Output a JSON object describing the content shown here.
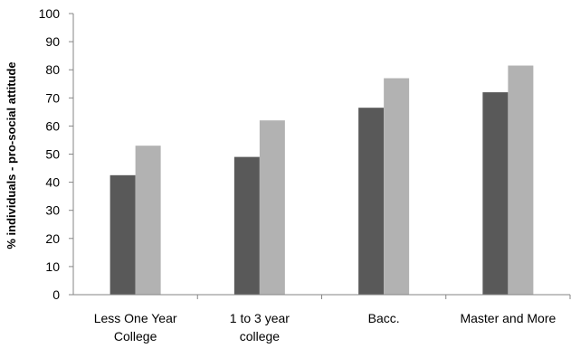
{
  "chart_data": {
    "type": "bar",
    "categories": [
      [
        "Less One Year",
        "College"
      ],
      [
        "1 to 3 year",
        "college"
      ],
      [
        "Bacc."
      ],
      [
        "Master and More"
      ]
    ],
    "series": [
      {
        "color": "#595959",
        "values": [
          42.5,
          49,
          66.5,
          72
        ]
      },
      {
        "color": "#b2b2b2",
        "values": [
          53,
          62,
          77,
          81.5
        ]
      }
    ],
    "title": "",
    "xlabel": "",
    "ylabel": "% individuals - pro-social attitude",
    "ylim": [
      0,
      100
    ],
    "yticks": [
      0,
      10,
      20,
      30,
      40,
      50,
      60,
      70,
      80,
      90,
      100
    ],
    "grid": false,
    "legend": "none"
  }
}
